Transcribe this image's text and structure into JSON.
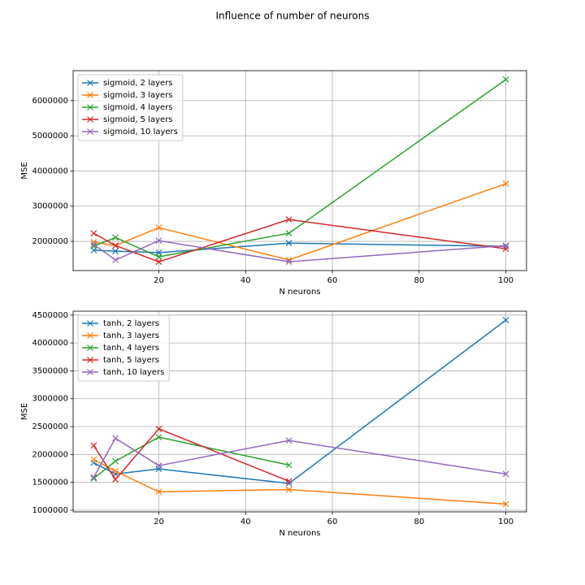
{
  "title": "Influence of number of neurons",
  "chart_data": [
    {
      "type": "line",
      "xlabel": "N neurons",
      "ylabel": "MSE",
      "x": [
        5,
        10,
        20,
        50,
        100
      ],
      "xlim": [
        0.25,
        104.75
      ],
      "xticks": [
        20,
        40,
        60,
        80,
        100
      ],
      "ylim": [
        1170000,
        6850000
      ],
      "yticks": [
        2000000,
        3000000,
        4000000,
        5000000,
        6000000
      ],
      "grid": true,
      "legend": "upper left",
      "series": [
        {
          "name": "sigmoid, 2 layers",
          "color": "#1f77b4",
          "values": [
            1750000,
            1720000,
            1680000,
            1950000,
            1860000
          ]
        },
        {
          "name": "sigmoid, 3 layers",
          "color": "#ff7f0e",
          "values": [
            1980000,
            1880000,
            2390000,
            1470000,
            3640000
          ]
        },
        {
          "name": "sigmoid, 4 layers",
          "color": "#2ca02c",
          "values": [
            1860000,
            2110000,
            1560000,
            2230000,
            6600000
          ]
        },
        {
          "name": "sigmoid, 5 layers",
          "color": "#d62728",
          "values": [
            2230000,
            1880000,
            1420000,
            2620000,
            1790000
          ]
        },
        {
          "name": "sigmoid, 10 layers",
          "color": "#9467bd",
          "values": [
            1910000,
            1470000,
            2020000,
            1420000,
            1880000
          ]
        }
      ]
    },
    {
      "type": "line",
      "xlabel": "N neurons",
      "ylabel": "MSE",
      "x": [
        5,
        10,
        20,
        50,
        100
      ],
      "xlim": [
        0.25,
        104.75
      ],
      "xticks": [
        20,
        40,
        60,
        80,
        100
      ],
      "ylim": [
        970000,
        4570000
      ],
      "yticks": [
        1000000,
        1500000,
        2000000,
        2500000,
        3000000,
        3500000,
        4000000,
        4500000
      ],
      "grid": true,
      "legend": "upper left",
      "series": [
        {
          "name": "tanh, 2 layers",
          "color": "#1f77b4",
          "values": [
            1850000,
            1650000,
            1740000,
            1480000,
            4410000
          ]
        },
        {
          "name": "tanh, 3 layers",
          "color": "#ff7f0e",
          "values": [
            1910000,
            1700000,
            1330000,
            1370000,
            1110000
          ]
        },
        {
          "name": "tanh, 4 layers",
          "color": "#2ca02c",
          "values": [
            1570000,
            1880000,
            2310000,
            1810000,
            null
          ]
        },
        {
          "name": "tanh, 5 layers",
          "color": "#d62728",
          "values": [
            2160000,
            1550000,
            2460000,
            1520000,
            null
          ]
        },
        {
          "name": "tanh, 10 layers",
          "color": "#9467bd",
          "values": [
            1590000,
            2290000,
            1800000,
            2250000,
            1650000
          ]
        }
      ]
    }
  ]
}
